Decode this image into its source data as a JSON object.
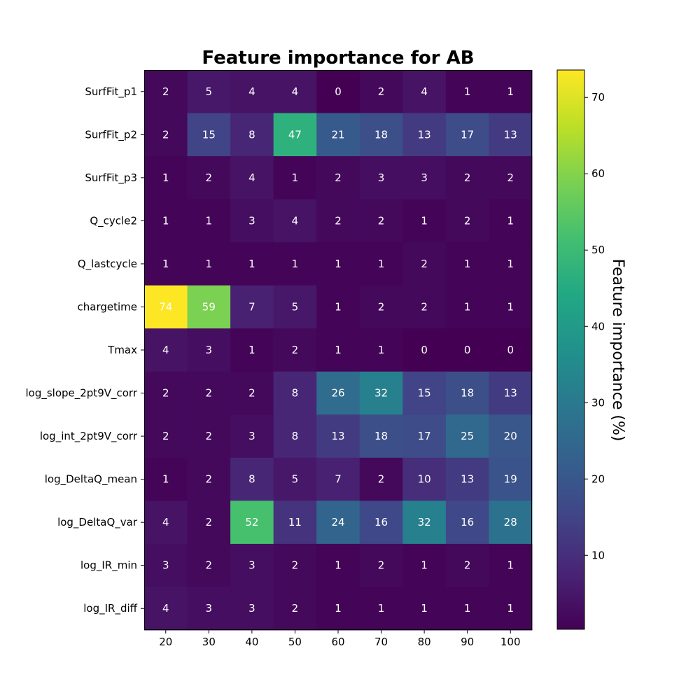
{
  "chart_data": {
    "type": "heatmap",
    "title": "Feature importance for AB",
    "xlabel": "",
    "ylabel": "",
    "x_categories": [
      "20",
      "30",
      "40",
      "50",
      "60",
      "70",
      "80",
      "90",
      "100"
    ],
    "y_categories": [
      "SurfFit_p1",
      "SurfFit_p2",
      "SurfFit_p3",
      "Q_cycle2",
      "Q_lastcycle",
      "chargetime",
      "Tmax",
      "log_slope_2pt9V_corr",
      "log_int_2pt9V_corr",
      "log_DeltaQ_mean",
      "log_DeltaQ_var",
      "log_IR_min",
      "log_IR_diff"
    ],
    "values": [
      [
        2,
        5,
        4,
        4,
        0,
        2,
        4,
        1,
        1
      ],
      [
        2,
        15,
        8,
        47,
        21,
        18,
        13,
        17,
        13
      ],
      [
        1,
        2,
        4,
        1,
        2,
        3,
        3,
        2,
        2
      ],
      [
        1,
        1,
        3,
        4,
        2,
        2,
        1,
        2,
        1
      ],
      [
        1,
        1,
        1,
        1,
        1,
        1,
        2,
        1,
        1
      ],
      [
        74,
        59,
        7,
        5,
        1,
        2,
        2,
        1,
        1
      ],
      [
        4,
        3,
        1,
        2,
        1,
        1,
        0,
        0,
        0
      ],
      [
        2,
        2,
        2,
        8,
        26,
        32,
        15,
        18,
        13
      ],
      [
        2,
        2,
        3,
        8,
        13,
        18,
        17,
        25,
        20
      ],
      [
        1,
        2,
        8,
        5,
        7,
        2,
        10,
        13,
        19
      ],
      [
        4,
        2,
        52,
        11,
        24,
        16,
        32,
        16,
        28
      ],
      [
        3,
        2,
        3,
        2,
        1,
        2,
        1,
        2,
        1
      ],
      [
        4,
        3,
        3,
        2,
        1,
        1,
        1,
        1,
        1
      ]
    ],
    "colormap": "viridis",
    "color_range": [
      0.3,
      73.6
    ],
    "colorbar": {
      "label": "Feature importance (%)",
      "ticks": [
        10,
        20,
        30,
        40,
        50,
        60,
        70
      ]
    },
    "cell_text_colors": {
      "light": "#ffffff",
      "dark": "#000000"
    }
  }
}
